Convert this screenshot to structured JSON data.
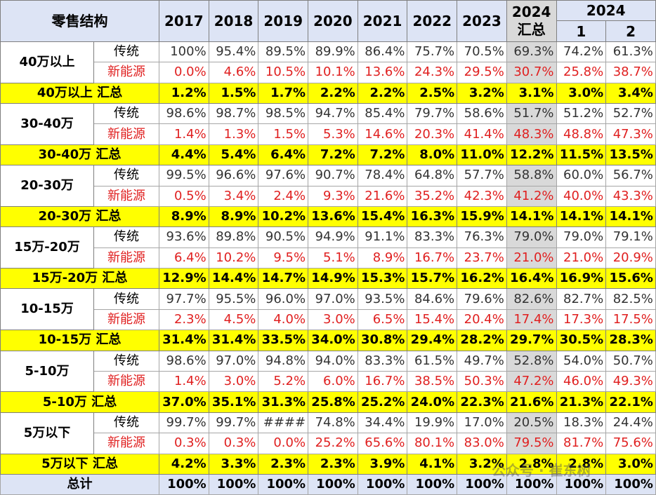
{
  "header": {
    "title": "零售结构",
    "years": [
      "2017",
      "2018",
      "2019",
      "2020",
      "2021",
      "2022",
      "2023"
    ],
    "ytd": [
      "2024",
      "汇总"
    ],
    "month_group": "2024",
    "months": [
      "1",
      "2"
    ]
  },
  "groups": [
    {
      "name": "40万以上",
      "rows": [
        {
          "label": "传统",
          "values": [
            "100%",
            "95.4%",
            "89.5%",
            "89.9%",
            "86.4%",
            "75.7%",
            "70.5%",
            "69.3%",
            "74.2%",
            "61.3%"
          ]
        },
        {
          "label": "新能源",
          "values": [
            "0.0%",
            "4.6%",
            "10.5%",
            "10.1%",
            "13.6%",
            "24.3%",
            "29.5%",
            "30.7%",
            "25.8%",
            "38.7%"
          ]
        }
      ],
      "summary": {
        "label": "40万以上 汇总",
        "values": [
          "1.2%",
          "1.5%",
          "1.7%",
          "2.2%",
          "2.2%",
          "2.5%",
          "3.2%",
          "3.1%",
          "3.0%",
          "3.4%"
        ]
      }
    },
    {
      "name": "30-40万",
      "rows": [
        {
          "label": "传统",
          "values": [
            "98.6%",
            "98.7%",
            "98.5%",
            "94.7%",
            "85.4%",
            "79.7%",
            "58.6%",
            "51.7%",
            "51.2%",
            "52.7%"
          ]
        },
        {
          "label": "新能源",
          "values": [
            "1.4%",
            "1.3%",
            "1.5%",
            "5.3%",
            "14.6%",
            "20.3%",
            "41.4%",
            "48.3%",
            "48.8%",
            "47.3%"
          ]
        }
      ],
      "summary": {
        "label": "30-40万 汇总",
        "values": [
          "4.4%",
          "5.4%",
          "6.4%",
          "7.2%",
          "7.2%",
          "8.0%",
          "11.0%",
          "12.2%",
          "11.5%",
          "13.5%"
        ]
      }
    },
    {
      "name": "20-30万",
      "rows": [
        {
          "label": "传统",
          "values": [
            "99.5%",
            "96.6%",
            "97.6%",
            "90.7%",
            "78.4%",
            "64.8%",
            "57.7%",
            "58.8%",
            "60.0%",
            "56.7%"
          ]
        },
        {
          "label": "新能源",
          "values": [
            "0.5%",
            "3.4%",
            "2.4%",
            "9.3%",
            "21.6%",
            "35.2%",
            "42.3%",
            "41.2%",
            "40.0%",
            "43.3%"
          ]
        }
      ],
      "summary": {
        "label": "20-30万 汇总",
        "values": [
          "8.9%",
          "8.9%",
          "10.2%",
          "13.6%",
          "15.4%",
          "16.3%",
          "15.9%",
          "14.1%",
          "14.1%",
          "14.1%"
        ]
      }
    },
    {
      "name": "15万-20万",
      "rows": [
        {
          "label": "传统",
          "values": [
            "93.6%",
            "89.8%",
            "90.5%",
            "94.9%",
            "91.1%",
            "83.3%",
            "76.3%",
            "79.0%",
            "79.0%",
            "79.1%"
          ]
        },
        {
          "label": "新能源",
          "values": [
            "6.4%",
            "10.2%",
            "9.5%",
            "5.1%",
            "8.9%",
            "16.7%",
            "23.7%",
            "21.0%",
            "21.0%",
            "20.9%"
          ]
        }
      ],
      "summary": {
        "label": "15万-20万 汇总",
        "values": [
          "12.9%",
          "14.4%",
          "14.7%",
          "14.9%",
          "15.3%",
          "15.7%",
          "16.2%",
          "16.4%",
          "16.9%",
          "15.6%"
        ]
      }
    },
    {
      "name": "10-15万",
      "rows": [
        {
          "label": "传统",
          "values": [
            "97.7%",
            "95.5%",
            "96.0%",
            "97.0%",
            "93.5%",
            "84.6%",
            "79.6%",
            "82.6%",
            "82.7%",
            "82.5%"
          ]
        },
        {
          "label": "新能源",
          "values": [
            "2.3%",
            "4.5%",
            "4.0%",
            "3.0%",
            "6.5%",
            "15.4%",
            "20.4%",
            "17.4%",
            "17.3%",
            "17.5%"
          ]
        }
      ],
      "summary": {
        "label": "10-15万 汇总",
        "values": [
          "31.4%",
          "31.4%",
          "33.5%",
          "34.0%",
          "30.8%",
          "29.4%",
          "28.2%",
          "29.7%",
          "30.5%",
          "28.3%"
        ]
      }
    },
    {
      "name": "5-10万",
      "rows": [
        {
          "label": "传统",
          "values": [
            "98.6%",
            "97.0%",
            "94.8%",
            "94.0%",
            "83.3%",
            "61.5%",
            "49.7%",
            "52.8%",
            "54.0%",
            "50.7%"
          ]
        },
        {
          "label": "新能源",
          "values": [
            "1.4%",
            "3.0%",
            "5.2%",
            "6.0%",
            "16.7%",
            "38.5%",
            "50.3%",
            "47.2%",
            "46.0%",
            "49.3%"
          ]
        }
      ],
      "summary": {
        "label": "5-10万 汇总",
        "values": [
          "37.0%",
          "35.1%",
          "31.3%",
          "25.8%",
          "25.2%",
          "24.0%",
          "22.3%",
          "21.6%",
          "21.3%",
          "22.1%"
        ]
      }
    },
    {
      "name": "5万以下",
      "rows": [
        {
          "label": "传统",
          "values": [
            "99.7%",
            "99.7%",
            "####",
            "74.8%",
            "34.4%",
            "19.9%",
            "17.0%",
            "20.5%",
            "18.3%",
            "24.4%"
          ]
        },
        {
          "label": "新能源",
          "values": [
            "0.3%",
            "0.3%",
            "0.0%",
            "25.2%",
            "65.6%",
            "80.1%",
            "83.0%",
            "79.5%",
            "81.7%",
            "75.6%"
          ]
        }
      ],
      "summary": {
        "label": "5万以下 汇总",
        "values": [
          "4.2%",
          "3.3%",
          "2.3%",
          "2.3%",
          "3.9%",
          "4.1%",
          "3.2%",
          "2.8%",
          "2.8%",
          "3.0%"
        ]
      }
    }
  ],
  "total": {
    "label": "总计",
    "values": [
      "100%",
      "100%",
      "100%",
      "100%",
      "100%",
      "100%",
      "100%",
      "100%",
      "100%",
      "100%"
    ]
  },
  "watermark": "公众号 · 崔东树"
}
